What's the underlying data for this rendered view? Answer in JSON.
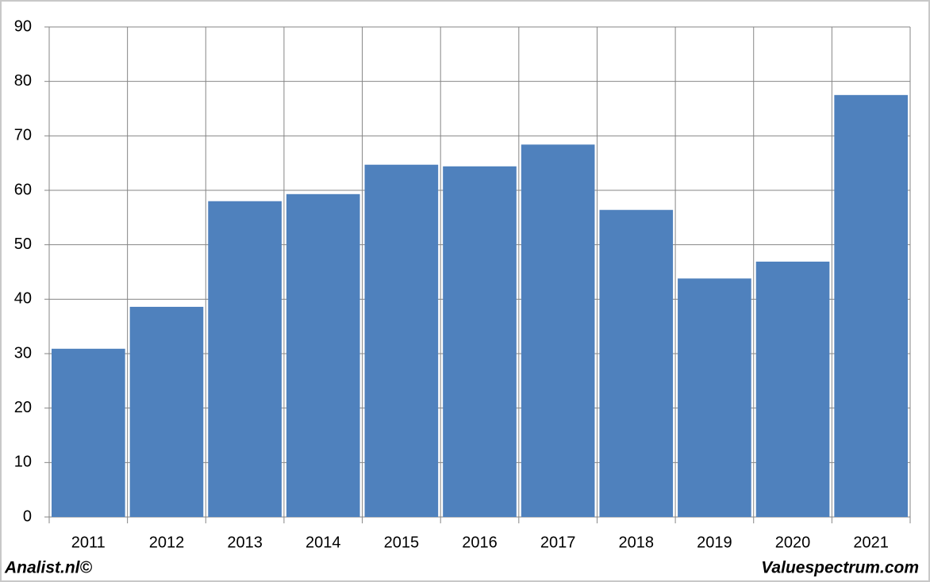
{
  "chart_data": {
    "type": "bar",
    "categories": [
      "2011",
      "2012",
      "2013",
      "2014",
      "2015",
      "2016",
      "2017",
      "2018",
      "2019",
      "2020",
      "2021"
    ],
    "values": [
      30.9,
      38.6,
      58,
      59.3,
      64.7,
      64.4,
      68.4,
      56.4,
      43.8,
      46.9,
      77.5
    ],
    "color": "#4f81bd",
    "ylim": [
      0,
      90
    ],
    "yticks": [
      0,
      10,
      20,
      30,
      40,
      50,
      60,
      70,
      80,
      90
    ],
    "grid": true,
    "footer_left": "Analist.nl©",
    "footer_right": "Valuespectrum.com"
  }
}
